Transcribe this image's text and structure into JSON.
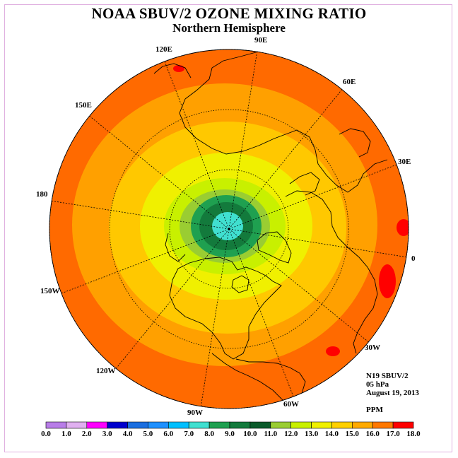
{
  "title": "NOAA SBUV/2 OZONE MIXING RATIO",
  "subtitle": "Northern Hemisphere",
  "longitude_labels": [
    "90E",
    "60E",
    "30E",
    "0",
    "30W",
    "60W",
    "90W",
    "120W",
    "150W",
    "180",
    "150E",
    "120E"
  ],
  "info": {
    "satellite": "N19 SBUV/2",
    "level": "05 hPa",
    "date": "August 19, 2013",
    "unit": "PPM"
  },
  "colorbar": {
    "ticks": [
      "0.0",
      "1.0",
      "2.0",
      "3.0",
      "4.0",
      "5.0",
      "6.0",
      "7.0",
      "8.0",
      "9.0",
      "10.0",
      "11.0",
      "12.0",
      "13.0",
      "14.0",
      "15.0",
      "16.0",
      "17.0",
      "18.0"
    ],
    "colors": [
      "#b87de8",
      "#e0b0f0",
      "#ff00ff",
      "#0000cd",
      "#1a6ee0",
      "#1e90ff",
      "#00bfff",
      "#40e0d0",
      "#1fa050",
      "#137a3c",
      "#0a5a2a",
      "#9acd32",
      "#c8f000",
      "#f0f000",
      "#ffd000",
      "#ffaa00",
      "#ff7800",
      "#ff0000",
      "#8b4513"
    ]
  },
  "map_colors": {
    "outer": "#ff6a00",
    "ring14_15": "#ffa000",
    "ring13_14": "#ffc800",
    "ring12_13": "#f0f000",
    "ring11_12": "#c8f000",
    "ring10_11": "#9acd32",
    "ring9_10": "#1fa050",
    "ring8_9": "#137a3c",
    "core7_8": "#40e0d0",
    "hotspot": "#ff0000"
  }
}
